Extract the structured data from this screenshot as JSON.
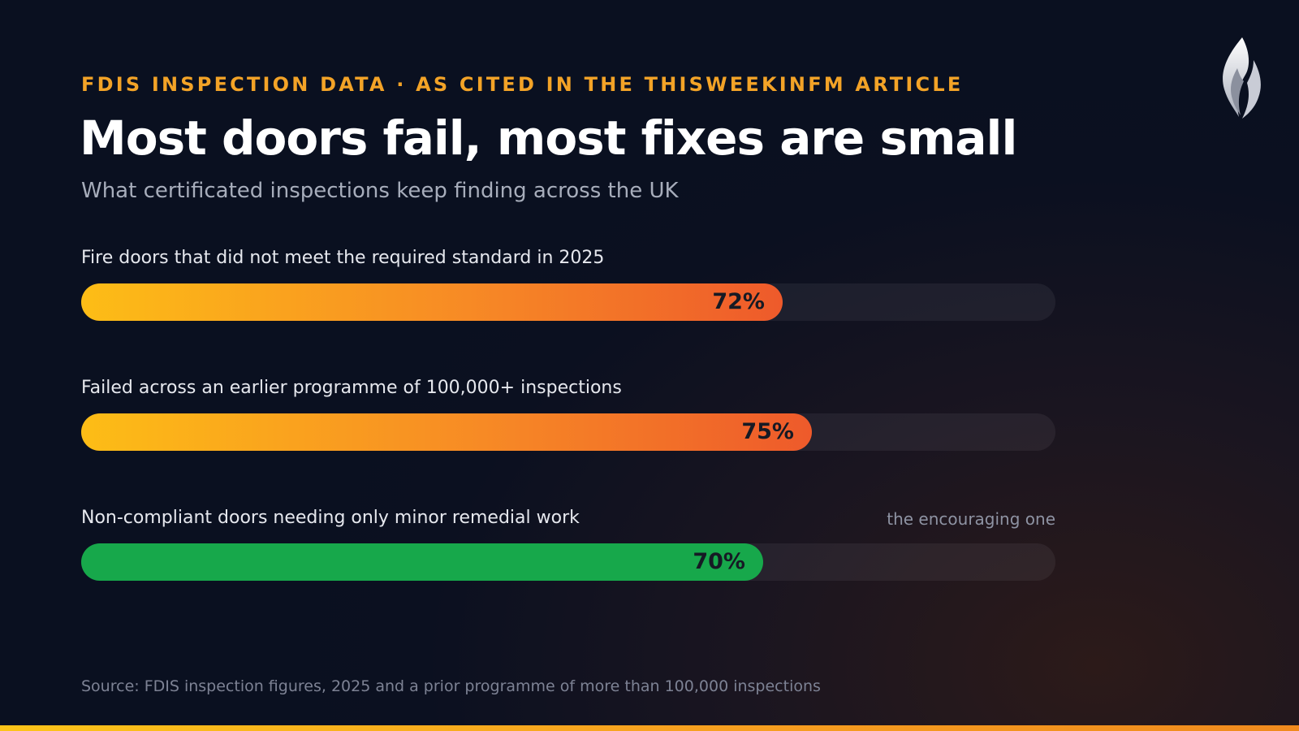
{
  "header": {
    "kicker": "FDIS INSPECTION DATA · AS CITED IN THE THISWEEKINFM ARTICLE",
    "title": "Most doors fail, most fixes are small",
    "subtitle": "What certificated inspections keep finding across the UK"
  },
  "logo": {
    "icon": "flame-logo-icon"
  },
  "chart_data": {
    "type": "bar",
    "orientation": "horizontal",
    "categories": [
      "Fire doors that did not meet the required standard in 2025",
      "Failed across an earlier programme of 100,000+ inspections",
      "Non-compliant doors needing only minor remedial work"
    ],
    "values": [
      72,
      75,
      70
    ],
    "value_labels": [
      "72%",
      "75%",
      "70%"
    ],
    "notes": [
      "",
      "",
      "the encouraging one"
    ],
    "styles": [
      "warm",
      "warm",
      "green"
    ],
    "xlim": [
      0,
      100
    ],
    "unit": "%",
    "grid": false,
    "colors": {
      "warm_start": "#fdbd16",
      "warm_end": "#ee5a2b",
      "green": "#17a84b",
      "track": "#1f1f2b"
    }
  },
  "footer": {
    "source": "Source: FDIS inspection figures, 2025 and a prior programme of more than 100,000 inspections"
  }
}
